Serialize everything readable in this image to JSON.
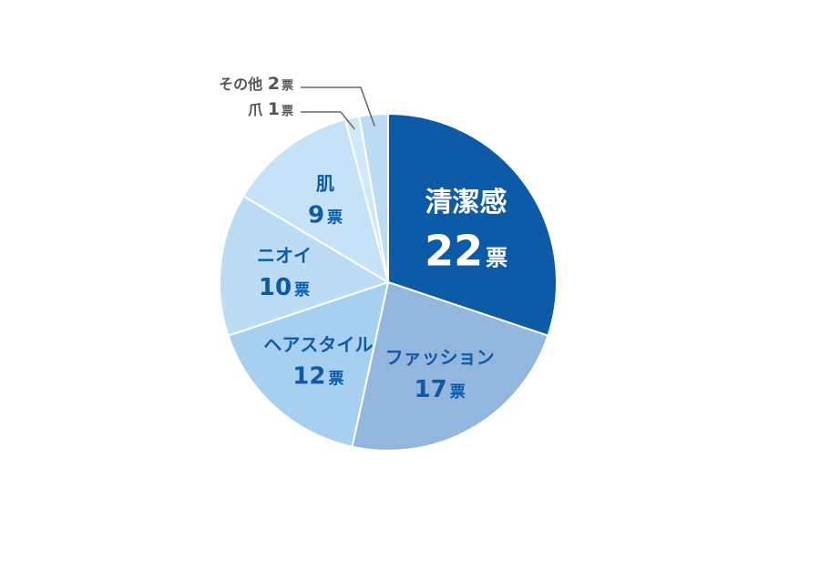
{
  "chart_data": {
    "type": "pie",
    "unit": "票",
    "slices": [
      {
        "label": "清潔感",
        "value": 22,
        "color": "#0d5aa7"
      },
      {
        "label": "ファッション",
        "value": 17,
        "color": "#93b6de"
      },
      {
        "label": "ヘアスタイル",
        "value": 12,
        "color": "#a7cff0"
      },
      {
        "label": "ニオイ",
        "value": 10,
        "color": "#bcdcf5"
      },
      {
        "label": "肌",
        "value": 9,
        "color": "#c6e2f7"
      },
      {
        "label": "爪",
        "value": 1,
        "color": "#d2e8f9"
      },
      {
        "label": "その他",
        "value": 2,
        "color": "#bcdcf5"
      }
    ]
  }
}
